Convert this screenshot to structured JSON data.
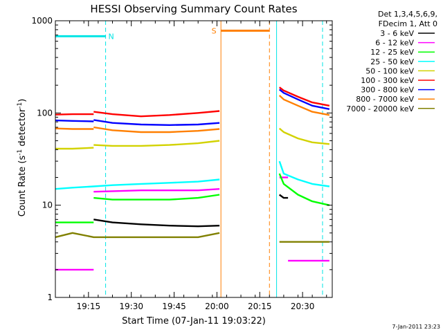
{
  "chart_data": {
    "type": "line",
    "title": "HESSI Observing Summary Count Rates",
    "xlabel": "Start Time (07-Jan-11 19:03:22)",
    "ylabel_main": "Count Rate (s",
    "ylabel_sup1": "-1",
    "ylabel_mid": " detector",
    "ylabel_sup2": "-1",
    "ylabel_end": ")",
    "y_scale": "log",
    "ylim": [
      1,
      1000
    ],
    "xlim_minutes": [
      0,
      97
    ],
    "x_ticks": [
      {
        "min": 11.6,
        "label": "19:15"
      },
      {
        "min": 26.6,
        "label": "19:30"
      },
      {
        "min": 41.6,
        "label": "19:45"
      },
      {
        "min": 56.6,
        "label": "20:00"
      },
      {
        "min": 71.6,
        "label": "20:15"
      },
      {
        "min": 86.6,
        "label": "20:30"
      }
    ],
    "y_ticks": [
      {
        "value": 1,
        "label": "1"
      },
      {
        "value": 10,
        "label": "10"
      },
      {
        "value": 100,
        "label": "100"
      },
      {
        "value": 1000,
        "label": "1000"
      }
    ],
    "legend_header": [
      "Det 1,3,4,5,6,9,",
      "FDecim 1, Att 0"
    ],
    "legend_position": "outside-right",
    "timestamp": "7-Jan-2011 23:23",
    "flags": [
      {
        "label": "N",
        "color": "#00e5e5",
        "bar_start": 0,
        "bar_end": 17.6,
        "level": 680,
        "solid_at": [
          0,
          77.5
        ],
        "dashed_at": [
          17.6,
          93.6
        ]
      },
      {
        "label": "S",
        "color": "#ff7f00",
        "bar_start": 58.0,
        "bar_end": 75.0,
        "level": 780,
        "solid_at": [
          58.0
        ],
        "dashed_at": [
          75.0
        ]
      }
    ],
    "series": [
      {
        "name": "3 - 6 keV",
        "color": "#000000",
        "segments": [
          {
            "x": [
              13.4,
              20,
              30,
              40,
              50,
              57.5
            ],
            "y": [
              7,
              6.5,
              6.2,
              6,
              5.9,
              6
            ]
          },
          {
            "x": [
              78.5,
              80,
              81.5
            ],
            "y": [
              13,
              12,
              12
            ]
          }
        ]
      },
      {
        "name": "6 - 12 keV",
        "color": "#ff00ff",
        "segments": [
          {
            "x": [
              0,
              6,
              13.4
            ],
            "y": [
              2,
              2,
              2
            ]
          },
          {
            "x": [
              13.4,
              20,
              30,
              40,
              50,
              57.5
            ],
            "y": [
              14,
              14.2,
              14.5,
              14.5,
              14.5,
              15
            ]
          },
          {
            "x": [
              78.5,
              80,
              81.5
            ],
            "y": [
              20,
              20,
              20
            ]
          },
          {
            "x": [
              81.5,
              90,
              96
            ],
            "y": [
              2.5,
              2.5,
              2.5
            ]
          }
        ]
      },
      {
        "name": "12 - 25 keV",
        "color": "#00ff00",
        "segments": [
          {
            "x": [
              0,
              6,
              13.4
            ],
            "y": [
              6.5,
              6.5,
              6.5
            ]
          },
          {
            "x": [
              13.4,
              20,
              30,
              40,
              50,
              57.5
            ],
            "y": [
              12,
              11.5,
              11.5,
              11.5,
              12,
              13
            ]
          },
          {
            "x": [
              78.5,
              80,
              85,
              90,
              96
            ],
            "y": [
              22,
              17,
              13,
              11,
              10
            ]
          }
        ]
      },
      {
        "name": "25 - 50 keV",
        "color": "#00ffff",
        "segments": [
          {
            "x": [
              0,
              6,
              13.4,
              20,
              30,
              40,
              50,
              57.5
            ],
            "y": [
              15,
              15.5,
              16,
              16.5,
              17,
              17.5,
              18,
              19
            ]
          },
          {
            "x": [
              78.5,
              80,
              85,
              90,
              96
            ],
            "y": [
              30,
              22,
              19,
              17,
              16
            ]
          }
        ]
      },
      {
        "name": "50 - 100 keV",
        "color": "#d2d200",
        "segments": [
          {
            "x": [
              0,
              6,
              13.4
            ],
            "y": [
              41,
              41,
              42
            ]
          },
          {
            "x": [
              13.4,
              20,
              30,
              40,
              50,
              57.5
            ],
            "y": [
              45,
              44,
              44,
              45,
              47,
              50
            ]
          },
          {
            "x": [
              78.5,
              80,
              85,
              90,
              96
            ],
            "y": [
              68,
              62,
              53,
              48,
              46
            ]
          }
        ]
      },
      {
        "name": "100 - 300 keV",
        "color": "#ff0000",
        "segments": [
          {
            "x": [
              0,
              6,
              13.4
            ],
            "y": [
              96,
              97,
              97
            ]
          },
          {
            "x": [
              13.4,
              20,
              30,
              40,
              50,
              57.5
            ],
            "y": [
              103,
              97,
              92,
              95,
              100,
              105
            ]
          },
          {
            "x": [
              78.5,
              80,
              85,
              90,
              96
            ],
            "y": [
              190,
              175,
              150,
              130,
              120
            ]
          }
        ]
      },
      {
        "name": "300 - 800 keV",
        "color": "#0000ff",
        "segments": [
          {
            "x": [
              0,
              6,
              13.4
            ],
            "y": [
              83,
              82,
              81
            ]
          },
          {
            "x": [
              13.4,
              20,
              30,
              40,
              50,
              57.5
            ],
            "y": [
              84,
              78,
              75,
              74,
              75,
              78
            ]
          },
          {
            "x": [
              78.5,
              80,
              85,
              90,
              96
            ],
            "y": [
              180,
              165,
              140,
              120,
              110
            ]
          }
        ]
      },
      {
        "name": "800 - 7000 keV",
        "color": "#ff7f00",
        "segments": [
          {
            "x": [
              0,
              6,
              13.4
            ],
            "y": [
              68,
              67,
              67
            ]
          },
          {
            "x": [
              13.4,
              20,
              30,
              40,
              50,
              57.5
            ],
            "y": [
              70,
              65,
              62,
              62,
              64,
              67
            ]
          },
          {
            "x": [
              78.5,
              80,
              85,
              90,
              96
            ],
            "y": [
              155,
              140,
              120,
              103,
              95
            ]
          }
        ]
      },
      {
        "name": "7000 - 20000 keV",
        "color": "#808000",
        "segments": [
          {
            "x": [
              0,
              6,
              13.4,
              20,
              30,
              40,
              50,
              57.5
            ],
            "y": [
              4.5,
              5,
              4.5,
              4.5,
              4.5,
              4.5,
              4.5,
              5
            ]
          },
          {
            "x": [
              78.5,
              85,
              90,
              96
            ],
            "y": [
              4,
              4,
              4,
              4
            ]
          }
        ]
      }
    ]
  }
}
